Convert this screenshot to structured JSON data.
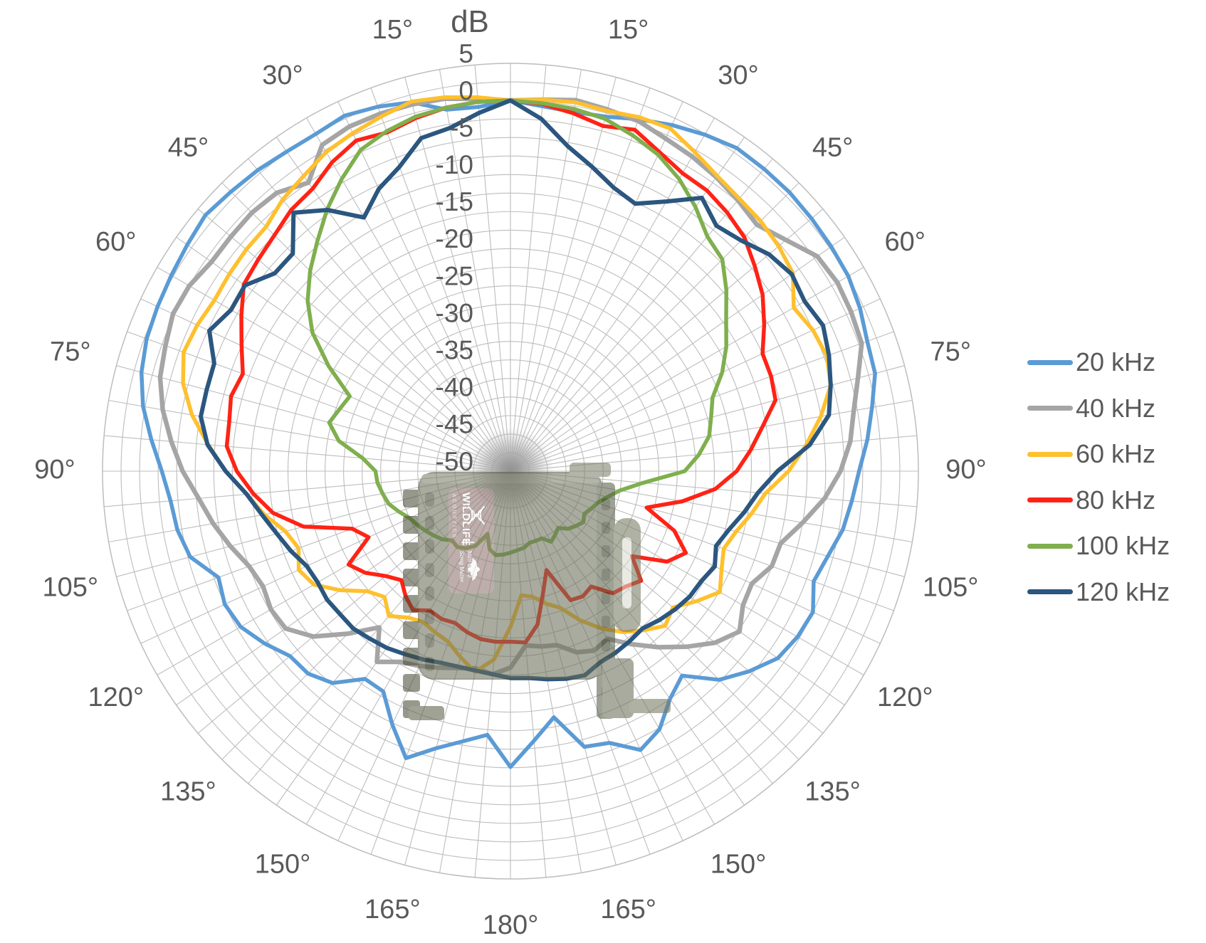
{
  "axis": {
    "title": "dB",
    "radial_tick_labels": [
      "5",
      "0",
      "-5",
      "-10",
      "-15",
      "-20",
      "-25",
      "-30",
      "-35",
      "-40",
      "-45",
      "-50"
    ],
    "radial_tick_values": [
      5,
      0,
      -5,
      -10,
      -15,
      -20,
      -25,
      -30,
      -35,
      -40,
      -45,
      -50
    ],
    "angle_labels": [
      "15°",
      "30°",
      "45°",
      "60°",
      "75°",
      "90°",
      "105°",
      "120°",
      "135°",
      "150°",
      "165°"
    ],
    "angle_label_values": [
      15,
      30,
      45,
      60,
      75,
      90,
      105,
      120,
      135,
      150,
      165
    ],
    "bottom_angle_label": "180°",
    "text_color": "#595959",
    "grid_color": "#bdbdbd"
  },
  "legend": {
    "items": [
      {
        "label": "20 kHz",
        "color": "#5B9BD5"
      },
      {
        "label": "40 kHz",
        "color": "#A5A5A5"
      },
      {
        "label": "60 kHz",
        "color": "#FFC02E"
      },
      {
        "label": "80 kHz",
        "color": "#FF2315"
      },
      {
        "label": "100 kHz",
        "color": "#7FAF4E"
      },
      {
        "label": "120 kHz",
        "color": "#2B567F"
      }
    ]
  },
  "watermark": {
    "brand": "WILDLIFE",
    "brand2": "ACOUSTICS",
    "model_line1": "Song Meter",
    "model_line2": "Mini Bat 2",
    "divider": "|"
  },
  "chart_data": {
    "type": "line",
    "subtype": "polar-directivity",
    "title": "dB",
    "r_axis_label": "dB",
    "r_min": -50,
    "r_max": 5,
    "ring_step_db": 2.5,
    "radial_line_step_deg": 5,
    "angles_deg_start": 0,
    "angle_step_deg": 5,
    "angle_convention": "degrees clockwise from top (0 = on-axis), full 360",
    "legend_position": "right",
    "series": [
      {
        "name": "20 kHz",
        "color": "#5B9BD5",
        "stroke_width": 5.5,
        "values": [
          0,
          -0.6,
          -0.8,
          -0.5,
          0.5,
          1.5,
          2.4,
          3.2,
          3.2,
          3.2,
          3,
          2.8,
          2.6,
          2,
          1.2,
          0.9,
          -0.5,
          -1.7,
          -3,
          -3.8,
          -4.5,
          -5.7,
          -6.5,
          -5,
          -5.3,
          -6,
          -8,
          -10.2,
          -14,
          -12.5,
          -9.8,
          -8.5,
          -11,
          -11.5,
          -16.3,
          -13.5,
          -10.1,
          -14.3,
          -13,
          -11.3,
          -8.8,
          -12.3,
          -15.7,
          -15.8,
          -12.7,
          -11.4,
          -11.2,
          -9.5,
          -8,
          -7.5,
          -8.1,
          -5.3,
          -4.4,
          -4,
          -3,
          -1.4,
          0.3,
          1.5,
          2.2,
          2.5,
          2.8,
          3.2,
          3.7,
          3.3,
          3,
          2.6,
          2.5,
          2.9,
          2.3,
          1.5,
          -0.5,
          -0.7
        ]
      },
      {
        "name": "40 kHz",
        "color": "#A5A5A5",
        "stroke_width": 6.5,
        "values": [
          0,
          0.3,
          0.8,
          0.5,
          0.3,
          -0.5,
          -1,
          -1.6,
          -2.3,
          -3,
          -1.5,
          0.5,
          0.9,
          0.7,
          0.4,
          -1.5,
          -3,
          -4,
          -5.5,
          -7.5,
          -10,
          -12.3,
          -12.5,
          -14.1,
          -13.8,
          -12.3,
          -14,
          -16.5,
          -19,
          -21.5,
          -23.9,
          -23.3,
          -24,
          -25.7,
          -26,
          -26.4,
          -23.5,
          -22.5,
          -23,
          -22.5,
          -21.8,
          -21,
          -20.3,
          -18.6,
          -22.5,
          -19,
          -15.3,
          -13,
          -12.7,
          -13.2,
          -12.5,
          -10.9,
          -9.3,
          -7.8,
          -5.8,
          -4.1,
          -2.4,
          -1.1,
          -0.5,
          0.2,
          0,
          -0.8,
          -0.8,
          -0.7,
          -1,
          -2.5,
          0.8,
          1.3,
          1.3,
          1.2,
          1,
          0.4
        ]
      },
      {
        "name": "60 kHz",
        "color": "#FFC02E",
        "stroke_width": 5.5,
        "values": [
          0,
          0.3,
          0.5,
          0.3,
          0.8,
          1,
          -0.3,
          -1.4,
          -2,
          -2.3,
          -2.8,
          -3.5,
          -5.9,
          -5,
          -4.6,
          -5.3,
          -7.5,
          -10,
          -12.5,
          -15.5,
          -17,
          -18.5,
          -19.4,
          -18.6,
          -17.4,
          -19.4,
          -21.4,
          -20.5,
          -22,
          -23.5,
          -25.5,
          -27.8,
          -30.4,
          -31.5,
          -32.8,
          -33.2,
          -29,
          -24.5,
          -22.5,
          -24,
          -25.5,
          -26,
          -26.5,
          -25.9,
          -24.5,
          -26,
          -24.8,
          -22,
          -19.4,
          -18.5,
          -19.6,
          -18.6,
          -16.3,
          -14.3,
          -11.6,
          -9.1,
          -6.4,
          -4.3,
          -3.1,
          -3.4,
          -3.9,
          -3.7,
          -3.5,
          -3.4,
          -2.2,
          -1.4,
          -0.3,
          0.3,
          0.9,
          1.6,
          1.2,
          0.6
        ]
      },
      {
        "name": "80 kHz",
        "color": "#FF2315",
        "stroke_width": 5.5,
        "values": [
          0,
          -0.3,
          -1,
          -1.8,
          -1,
          -2.5,
          -3.6,
          -3.8,
          -4.5,
          -5.4,
          -7,
          -8.5,
          -10.5,
          -12.5,
          -12.6,
          -13,
          -15.5,
          -17.5,
          -19.5,
          -22.3,
          -26.5,
          -31,
          -26.5,
          -23.9,
          -25.6,
          -30,
          -27,
          -28,
          -28.5,
          -31,
          -30.5,
          -30.8,
          -35.8,
          -33,
          -29,
          -26.8,
          -27,
          -26.9,
          -27,
          -27.5,
          -28.2,
          -28,
          -28.3,
          -27.1,
          -28,
          -29.2,
          -28,
          -26.1,
          -24.8,
          -28.9,
          -27.3,
          -21.1,
          -17.5,
          -15.2,
          -13.1,
          -11.6,
          -11.5,
          -11,
          -11.6,
          -10,
          -8.1,
          -6.1,
          -5.6,
          -5,
          -4,
          -3.5,
          -1.9,
          -0.8,
          -1.4,
          -0.7,
          -0.2,
          0
        ]
      },
      {
        "name": "100 kHz",
        "color": "#7FAF4E",
        "stroke_width": 5.5,
        "values": [
          0,
          -0.2,
          -0.4,
          -0.8,
          -1.8,
          -2.9,
          -4.5,
          -6.5,
          -8.7,
          -9.6,
          -12,
          -14.5,
          -16.4,
          -18.5,
          -21,
          -22,
          -22.8,
          -24.5,
          -26.5,
          -32,
          -35,
          -36.5,
          -37.5,
          -38,
          -38.5,
          -38,
          -38.5,
          -39,
          -40,
          -39.5,
          -39,
          -40,
          -40,
          -40,
          -39.5,
          -39.3,
          -39,
          -38.7,
          -38.5,
          -39.1,
          -41,
          -38.9,
          -38,
          -37.5,
          -37.8,
          -37,
          -36.5,
          -36,
          -35.5,
          -35,
          -34,
          -33,
          -32.5,
          -32,
          -31.8,
          -30,
          -26.5,
          -24.7,
          -25.5,
          -26.1,
          -21.7,
          -17.4,
          -14.3,
          -11.8,
          -9.5,
          -6.9,
          -4.5,
          -2.2,
          -1.2,
          -0.5,
          -0.2,
          0
        ]
      },
      {
        "name": "120 kHz",
        "color": "#2B567F",
        "stroke_width": 6,
        "values": [
          0,
          -2.3,
          -5.5,
          -7.5,
          -9.3,
          -10.2,
          -8,
          -5,
          -6.8,
          -6,
          -4.5,
          -3.7,
          -4.2,
          -3.5,
          -4.3,
          -5.3,
          -6.4,
          -9.5,
          -14,
          -16.5,
          -18,
          -19.5,
          -20.5,
          -19.6,
          -20.3,
          -20.5,
          -21,
          -21.6,
          -22.3,
          -22,
          -21.7,
          -21.5,
          -20.7,
          -21,
          -21.5,
          -22,
          -22.1,
          -22.5,
          -22.7,
          -22.7,
          -22.5,
          -22,
          -21.5,
          -20.9,
          -20.5,
          -20,
          -20,
          -19.8,
          -20,
          -19.7,
          -18.5,
          -17.4,
          -16,
          -14.3,
          -11.6,
          -9,
          -7.6,
          -7.6,
          -7.5,
          -5.2,
          -6.5,
          -6.3,
          -8.5,
          -8.5,
          -4.5,
          -7,
          -10.5,
          -8,
          -6.3,
          -3.5,
          -3,
          -1.5
        ]
      }
    ]
  }
}
